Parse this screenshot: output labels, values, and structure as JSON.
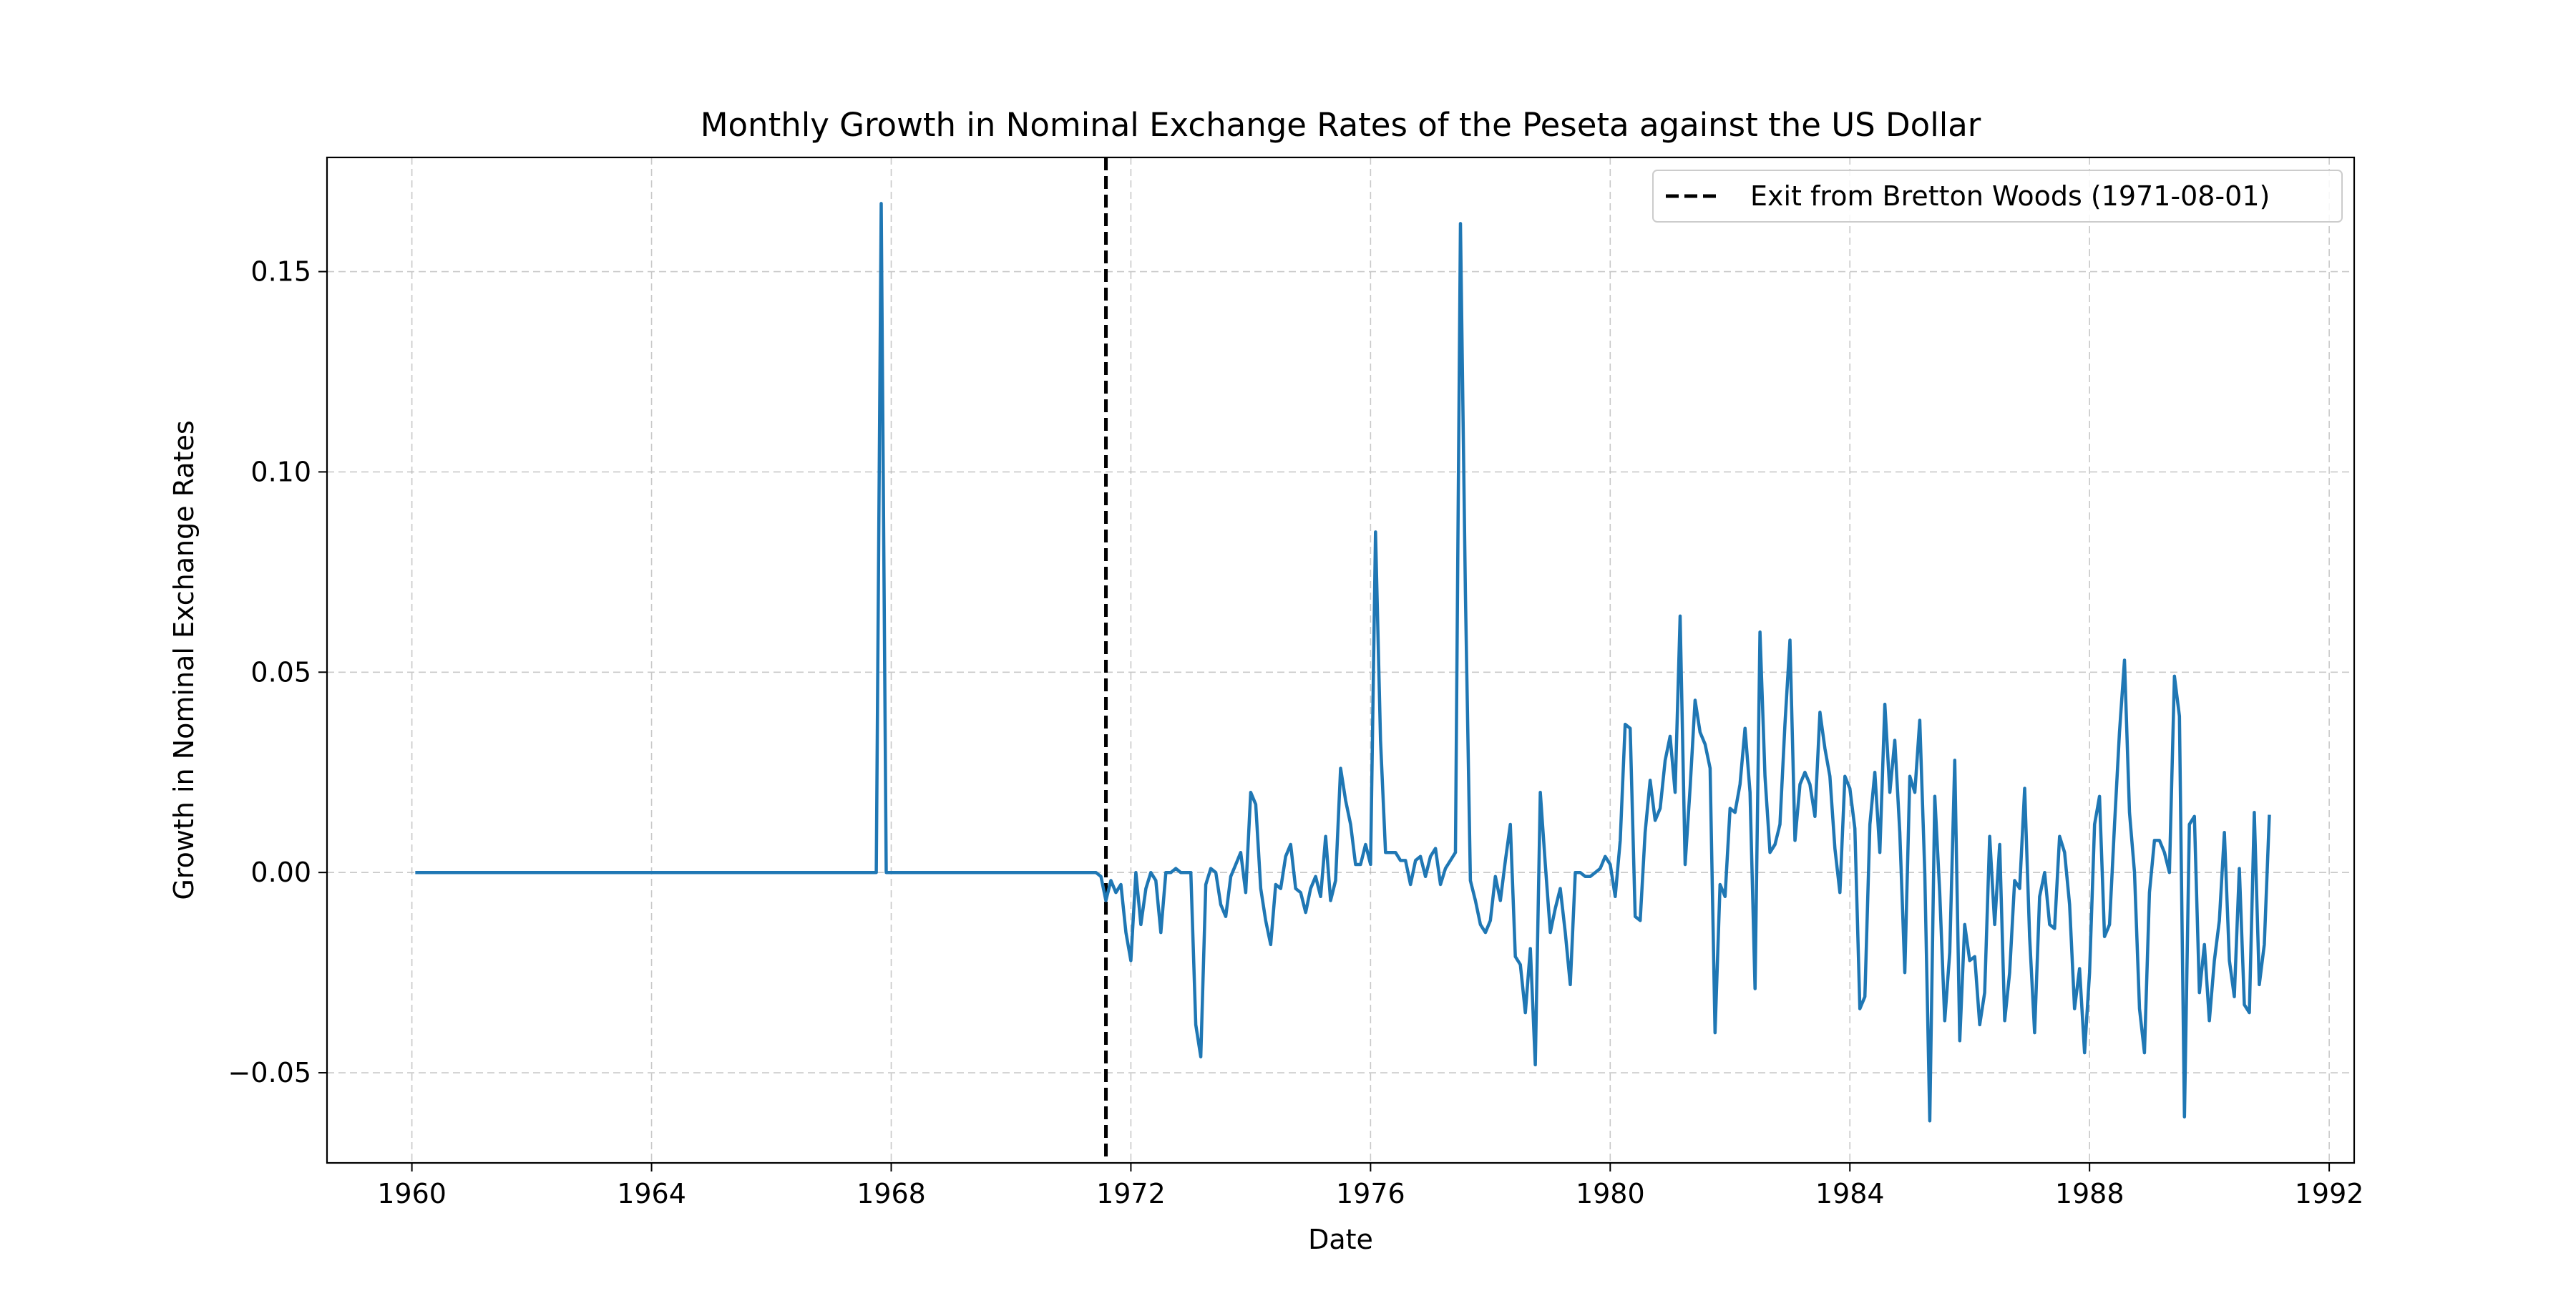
{
  "chart_data": {
    "type": "line",
    "title": "Monthly Growth in Nominal Exchange Rates of the Peseta against the US Dollar",
    "xlabel": "Date",
    "ylabel": "Growth in Nominal Exchange Rates",
    "x_range": [
      "1958-08-01",
      "1992-06-01"
    ],
    "y_range": [
      -0.0725,
      0.1785
    ],
    "x_ticks": [
      {
        "date": "1960-01-01",
        "label": "1960"
      },
      {
        "date": "1964-01-01",
        "label": "1964"
      },
      {
        "date": "1968-01-01",
        "label": "1968"
      },
      {
        "date": "1972-01-01",
        "label": "1972"
      },
      {
        "date": "1976-01-01",
        "label": "1976"
      },
      {
        "date": "1980-01-01",
        "label": "1980"
      },
      {
        "date": "1984-01-01",
        "label": "1984"
      },
      {
        "date": "1988-01-01",
        "label": "1988"
      },
      {
        "date": "1992-01-01",
        "label": "1992"
      }
    ],
    "y_ticks": [
      {
        "value": -0.05,
        "label": "−0.05"
      },
      {
        "value": 0.0,
        "label": "0.00"
      },
      {
        "value": 0.05,
        "label": "0.05"
      },
      {
        "value": 0.1,
        "label": "0.10"
      },
      {
        "value": 0.15,
        "label": "0.15"
      }
    ],
    "grid": true,
    "legend_position": "top-right",
    "reference_lines": [
      {
        "date": "1971-08-01",
        "label": "Exit from Bretton Woods (1971-08-01)",
        "style": "dashed",
        "color": "#000000"
      }
    ],
    "series": [
      {
        "color": "#1f77b4",
        "points": [
          [
            "1960-02-01",
            0.0
          ],
          [
            "1967-10-01",
            0.0
          ],
          [
            "1967-11-01",
            0.167
          ],
          [
            "1967-12-01",
            0.0
          ],
          [
            "1971-06-01",
            0.0
          ],
          [
            "1971-07-01",
            -0.001
          ],
          [
            "1971-08-01",
            -0.007
          ],
          [
            "1971-09-01",
            -0.002
          ],
          [
            "1971-10-01",
            -0.005
          ],
          [
            "1971-11-01",
            -0.003
          ],
          [
            "1971-12-01",
            -0.015
          ],
          [
            "1972-01-01",
            -0.022
          ],
          [
            "1972-02-01",
            0.0
          ],
          [
            "1972-03-01",
            -0.013
          ],
          [
            "1972-04-01",
            -0.004
          ],
          [
            "1972-05-01",
            0.0
          ],
          [
            "1972-06-01",
            -0.002
          ],
          [
            "1972-07-01",
            -0.015
          ],
          [
            "1972-08-01",
            0.0
          ],
          [
            "1972-09-01",
            0.0
          ],
          [
            "1972-10-01",
            0.001
          ],
          [
            "1972-11-01",
            0.0
          ],
          [
            "1972-12-01",
            0.0
          ],
          [
            "1973-01-01",
            0.0
          ],
          [
            "1973-02-01",
            -0.038
          ],
          [
            "1973-03-01",
            -0.046
          ],
          [
            "1973-04-01",
            -0.003
          ],
          [
            "1973-05-01",
            0.001
          ],
          [
            "1973-06-01",
            0.0
          ],
          [
            "1973-07-01",
            -0.008
          ],
          [
            "1973-08-01",
            -0.011
          ],
          [
            "1973-09-01",
            -0.001
          ],
          [
            "1973-10-01",
            0.002
          ],
          [
            "1973-11-01",
            0.005
          ],
          [
            "1973-12-01",
            -0.005
          ],
          [
            "1974-01-01",
            0.02
          ],
          [
            "1974-02-01",
            0.017
          ],
          [
            "1974-03-01",
            -0.004
          ],
          [
            "1974-04-01",
            -0.012
          ],
          [
            "1974-05-01",
            -0.018
          ],
          [
            "1974-06-01",
            -0.003
          ],
          [
            "1974-07-01",
            -0.004
          ],
          [
            "1974-08-01",
            0.004
          ],
          [
            "1974-09-01",
            0.007
          ],
          [
            "1974-10-01",
            -0.004
          ],
          [
            "1974-11-01",
            -0.005
          ],
          [
            "1974-12-01",
            -0.01
          ],
          [
            "1975-01-01",
            -0.004
          ],
          [
            "1975-02-01",
            -0.001
          ],
          [
            "1975-03-01",
            -0.006
          ],
          [
            "1975-04-01",
            0.009
          ],
          [
            "1975-05-01",
            -0.007
          ],
          [
            "1975-06-01",
            -0.002
          ],
          [
            "1975-07-01",
            0.026
          ],
          [
            "1975-08-01",
            0.018
          ],
          [
            "1975-09-01",
            0.012
          ],
          [
            "1975-10-01",
            0.002
          ],
          [
            "1975-11-01",
            0.002
          ],
          [
            "1975-12-01",
            0.007
          ],
          [
            "1976-01-01",
            0.002
          ],
          [
            "1976-02-01",
            0.085
          ],
          [
            "1976-03-01",
            0.033
          ],
          [
            "1976-04-01",
            0.005
          ],
          [
            "1976-05-01",
            0.005
          ],
          [
            "1976-06-01",
            0.005
          ],
          [
            "1976-07-01",
            0.003
          ],
          [
            "1976-08-01",
            0.003
          ],
          [
            "1976-09-01",
            -0.003
          ],
          [
            "1976-10-01",
            0.003
          ],
          [
            "1976-11-01",
            0.004
          ],
          [
            "1976-12-01",
            -0.001
          ],
          [
            "1977-01-01",
            0.004
          ],
          [
            "1977-02-01",
            0.006
          ],
          [
            "1977-03-01",
            -0.003
          ],
          [
            "1977-04-01",
            0.001
          ],
          [
            "1977-05-01",
            0.003
          ],
          [
            "1977-06-01",
            0.005
          ],
          [
            "1977-07-01",
            0.162
          ],
          [
            "1977-08-01",
            0.07
          ],
          [
            "1977-09-01",
            -0.002
          ],
          [
            "1977-10-01",
            -0.007
          ],
          [
            "1977-11-01",
            -0.013
          ],
          [
            "1977-12-01",
            -0.015
          ],
          [
            "1978-01-01",
            -0.012
          ],
          [
            "1978-02-01",
            -0.001
          ],
          [
            "1978-03-01",
            -0.007
          ],
          [
            "1978-04-01",
            0.003
          ],
          [
            "1978-05-01",
            0.012
          ],
          [
            "1978-06-01",
            -0.021
          ],
          [
            "1978-07-01",
            -0.023
          ],
          [
            "1978-08-01",
            -0.035
          ],
          [
            "1978-09-01",
            -0.019
          ],
          [
            "1978-10-01",
            -0.048
          ],
          [
            "1978-11-01",
            0.02
          ],
          [
            "1978-12-01",
            0.002
          ],
          [
            "1979-01-01",
            -0.015
          ],
          [
            "1979-02-01",
            -0.009
          ],
          [
            "1979-03-01",
            -0.004
          ],
          [
            "1979-04-01",
            -0.015
          ],
          [
            "1979-05-01",
            -0.028
          ],
          [
            "1979-06-01",
            0.0
          ],
          [
            "1979-07-01",
            0.0
          ],
          [
            "1979-08-01",
            -0.001
          ],
          [
            "1979-09-01",
            -0.001
          ],
          [
            "1979-10-01",
            0.0
          ],
          [
            "1979-11-01",
            0.001
          ],
          [
            "1979-12-01",
            0.004
          ],
          [
            "1980-01-01",
            0.002
          ],
          [
            "1980-02-01",
            -0.006
          ],
          [
            "1980-03-01",
            0.008
          ],
          [
            "1980-04-01",
            0.037
          ],
          [
            "1980-05-01",
            0.036
          ],
          [
            "1980-06-01",
            -0.011
          ],
          [
            "1980-07-01",
            -0.012
          ],
          [
            "1980-08-01",
            0.01
          ],
          [
            "1980-09-01",
            0.023
          ],
          [
            "1980-10-01",
            0.013
          ],
          [
            "1980-11-01",
            0.016
          ],
          [
            "1980-12-01",
            0.028
          ],
          [
            "1981-01-01",
            0.034
          ],
          [
            "1981-02-01",
            0.02
          ],
          [
            "1981-03-01",
            0.064
          ],
          [
            "1981-04-01",
            0.002
          ],
          [
            "1981-05-01",
            0.021
          ],
          [
            "1981-06-01",
            0.043
          ],
          [
            "1981-07-01",
            0.035
          ],
          [
            "1981-08-01",
            0.032
          ],
          [
            "1981-09-01",
            0.026
          ],
          [
            "1981-10-01",
            -0.04
          ],
          [
            "1981-11-01",
            -0.003
          ],
          [
            "1981-12-01",
            -0.006
          ],
          [
            "1982-01-01",
            0.016
          ],
          [
            "1982-02-01",
            0.015
          ],
          [
            "1982-03-01",
            0.022
          ],
          [
            "1982-04-01",
            0.036
          ],
          [
            "1982-05-01",
            0.02
          ],
          [
            "1982-06-01",
            -0.029
          ],
          [
            "1982-07-01",
            0.06
          ],
          [
            "1982-08-01",
            0.024
          ],
          [
            "1982-09-01",
            0.005
          ],
          [
            "1982-10-01",
            0.007
          ],
          [
            "1982-11-01",
            0.012
          ],
          [
            "1982-12-01",
            0.037
          ],
          [
            "1983-01-01",
            0.058
          ],
          [
            "1983-02-01",
            0.008
          ],
          [
            "1983-03-01",
            0.022
          ],
          [
            "1983-04-01",
            0.025
          ],
          [
            "1983-05-01",
            0.022
          ],
          [
            "1983-06-01",
            0.014
          ],
          [
            "1983-07-01",
            0.04
          ],
          [
            "1983-08-01",
            0.031
          ],
          [
            "1983-09-01",
            0.024
          ],
          [
            "1983-10-01",
            0.006
          ],
          [
            "1983-11-01",
            -0.005
          ],
          [
            "1983-12-01",
            0.024
          ],
          [
            "1984-01-01",
            0.021
          ],
          [
            "1984-02-01",
            0.011
          ],
          [
            "1984-03-01",
            -0.034
          ],
          [
            "1984-04-01",
            -0.031
          ],
          [
            "1984-05-01",
            0.012
          ],
          [
            "1984-06-01",
            0.025
          ],
          [
            "1984-07-01",
            0.005
          ],
          [
            "1984-08-01",
            0.042
          ],
          [
            "1984-09-01",
            0.02
          ],
          [
            "1984-10-01",
            0.033
          ],
          [
            "1984-11-01",
            0.01
          ],
          [
            "1984-12-01",
            -0.025
          ],
          [
            "1985-01-01",
            0.024
          ],
          [
            "1985-02-01",
            0.02
          ],
          [
            "1985-03-01",
            0.038
          ],
          [
            "1985-04-01",
            0.0
          ],
          [
            "1985-05-01",
            -0.062
          ],
          [
            "1985-06-01",
            0.019
          ],
          [
            "1985-07-01",
            -0.005
          ],
          [
            "1985-08-01",
            -0.037
          ],
          [
            "1985-09-01",
            -0.02
          ],
          [
            "1985-10-01",
            0.028
          ],
          [
            "1985-11-01",
            -0.042
          ],
          [
            "1985-12-01",
            -0.013
          ],
          [
            "1986-01-01",
            -0.022
          ],
          [
            "1986-02-01",
            -0.021
          ],
          [
            "1986-03-01",
            -0.038
          ],
          [
            "1986-04-01",
            -0.03
          ],
          [
            "1986-05-01",
            0.009
          ],
          [
            "1986-06-01",
            -0.013
          ],
          [
            "1986-07-01",
            0.007
          ],
          [
            "1986-08-01",
            -0.037
          ],
          [
            "1986-09-01",
            -0.025
          ],
          [
            "1986-10-01",
            -0.002
          ],
          [
            "1986-11-01",
            -0.004
          ],
          [
            "1986-12-01",
            0.021
          ],
          [
            "1987-01-01",
            -0.016
          ],
          [
            "1987-02-01",
            -0.04
          ],
          [
            "1987-03-01",
            -0.006
          ],
          [
            "1987-04-01",
            0.0
          ],
          [
            "1987-05-01",
            -0.013
          ],
          [
            "1987-06-01",
            -0.014
          ],
          [
            "1987-07-01",
            0.009
          ],
          [
            "1987-08-01",
            0.005
          ],
          [
            "1987-09-01",
            -0.008
          ],
          [
            "1987-10-01",
            -0.034
          ],
          [
            "1987-11-01",
            -0.024
          ],
          [
            "1987-12-01",
            -0.045
          ],
          [
            "1988-01-01",
            -0.025
          ],
          [
            "1988-02-01",
            0.012
          ],
          [
            "1988-03-01",
            0.019
          ],
          [
            "1988-04-01",
            -0.016
          ],
          [
            "1988-05-01",
            -0.013
          ],
          [
            "1988-06-01",
            0.012
          ],
          [
            "1988-07-01",
            0.035
          ],
          [
            "1988-08-01",
            0.053
          ],
          [
            "1988-09-01",
            0.015
          ],
          [
            "1988-10-01",
            0.0
          ],
          [
            "1988-11-01",
            -0.034
          ],
          [
            "1988-12-01",
            -0.045
          ],
          [
            "1989-01-01",
            -0.005
          ],
          [
            "1989-02-01",
            0.008
          ],
          [
            "1989-03-01",
            0.008
          ],
          [
            "1989-04-01",
            0.005
          ],
          [
            "1989-05-01",
            0.0
          ],
          [
            "1989-06-01",
            0.049
          ],
          [
            "1989-07-01",
            0.039
          ],
          [
            "1989-08-01",
            -0.061
          ],
          [
            "1989-09-01",
            0.012
          ],
          [
            "1989-10-01",
            0.014
          ],
          [
            "1989-11-01",
            -0.03
          ],
          [
            "1989-12-01",
            -0.018
          ],
          [
            "1990-01-01",
            -0.037
          ],
          [
            "1990-02-01",
            -0.022
          ],
          [
            "1990-03-01",
            -0.012
          ],
          [
            "1990-04-01",
            0.01
          ],
          [
            "1990-05-01",
            -0.022
          ],
          [
            "1990-06-01",
            -0.031
          ],
          [
            "1990-07-01",
            0.001
          ],
          [
            "1990-08-01",
            -0.033
          ],
          [
            "1990-09-01",
            -0.035
          ],
          [
            "1990-10-01",
            0.015
          ],
          [
            "1990-11-01",
            -0.028
          ],
          [
            "1990-12-01",
            -0.018
          ],
          [
            "1991-01-01",
            0.014
          ]
        ]
      }
    ]
  }
}
